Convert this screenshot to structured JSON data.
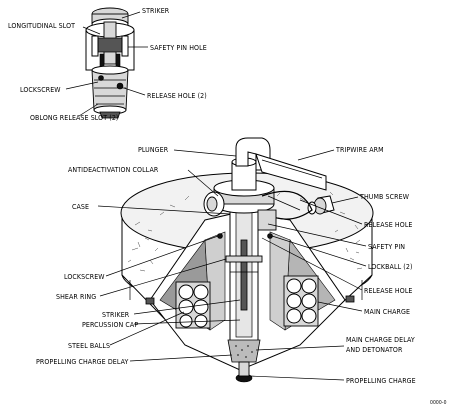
{
  "labels": {
    "longitudinal_slot": "LONGITUDINAL SLOT",
    "striker_top": "STRIKER",
    "safety_pin_hole": "SAFETY PIN HOLE",
    "lockscrew_top": "LOCKSCREW",
    "release_hole_2": "RELEASE HOLE (2)",
    "oblong_release_slot": "OBLONG RELEASE SLOT (2)",
    "plunger": "PLUNGER",
    "tripwire_arm": "TRIPWIRE ARM",
    "antideactivation_collar": "ANTIDEACTIVATION COLLAR",
    "thumb_screw": "THUMB SCREW",
    "case": "CASE",
    "release_hole": "RELEASE HOLE",
    "safety_pin": "SAFETY PIN",
    "lockball_2": "LOCKBALL (2)",
    "lockscrew": "LOCKSCREW",
    "release_hole_lower": "RELEASE HOLE",
    "shear_ring": "SHEAR RING",
    "main_charge": "MAIN CHARGE",
    "striker": "STRIKER",
    "percussion_cap": "PERCUSSION CAP",
    "steel_balls": "STEEL BALLS",
    "main_charge_delay": "MAIN CHARGE DELAY",
    "and_detonator": "AND DETONATOR",
    "propelling_charge_delay": "PROPELLING CHARGE DELAY",
    "propelling_charge": "PROPELLING CHARGE",
    "figure_id": "0000-0"
  }
}
